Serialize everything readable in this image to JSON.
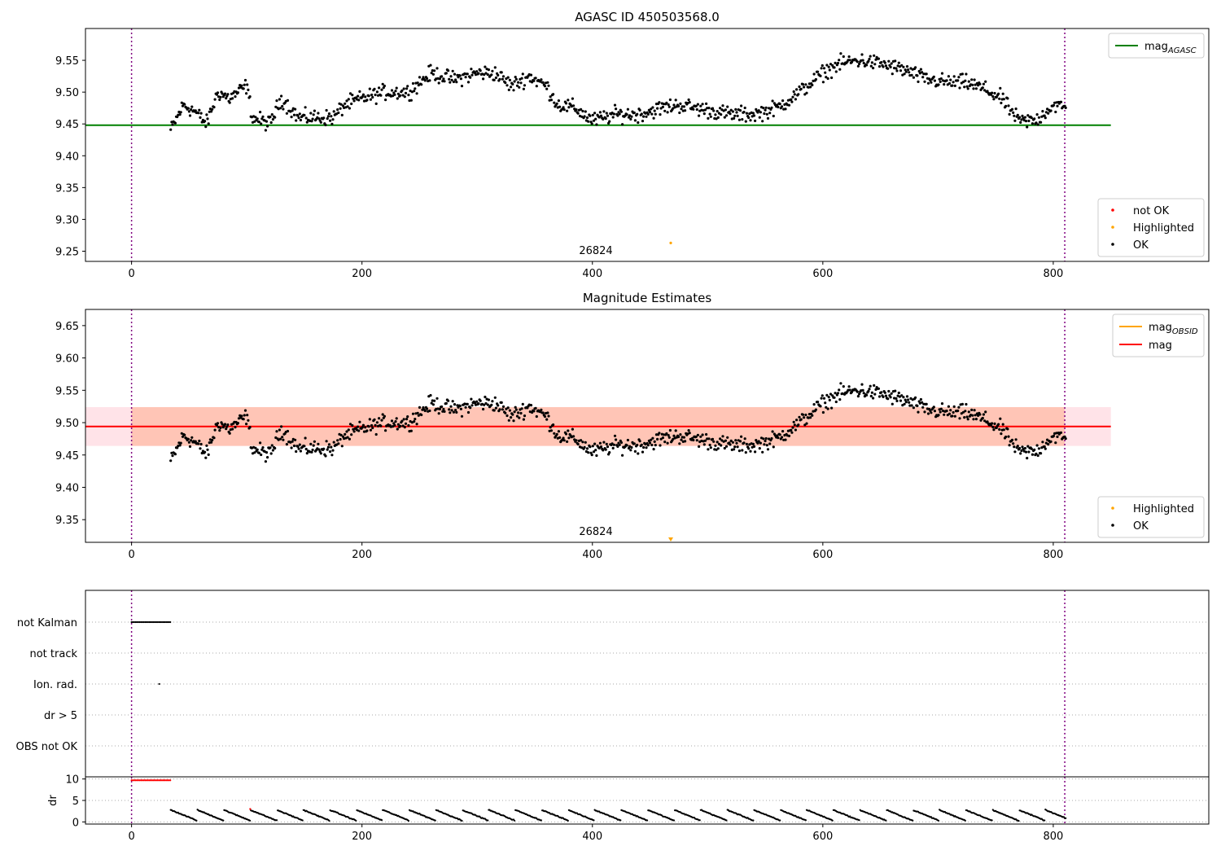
{
  "figure": {
    "titles": [
      "AGASC ID 450503568.0",
      "Magnitude Estimates"
    ],
    "obsid_label": "26824"
  },
  "colors": {
    "ok": "#000000",
    "not_ok": "#ff0000",
    "highlighted": "#ffa500",
    "mag_agasc": "#008000",
    "mag": "#ff0000",
    "mag_obsid": "#ffa500",
    "band_mag": "#ffc0cb",
    "band_obsid": "#ffa07a",
    "boundary_line": "#800080"
  },
  "chart_data": [
    {
      "type": "scatter",
      "title": "AGASC ID 450503568.0",
      "xlim": [
        -40,
        935
      ],
      "ylim": [
        9.234,
        9.6
      ],
      "xticks": [
        0,
        200,
        400,
        600,
        800
      ],
      "yticks": [
        9.25,
        9.3,
        9.35,
        9.4,
        9.45,
        9.5,
        9.55
      ],
      "obs_boundaries": [
        0,
        810
      ],
      "obsid_label": {
        "text": "26824",
        "x": 405
      },
      "reference_lines": [
        {
          "name": "mag_AGASC",
          "label_base": "mag",
          "label_sub": "AGASC",
          "y": 9.448,
          "x_range": [
            -40,
            850
          ],
          "color": "#008000"
        }
      ],
      "series": [
        {
          "name": "not OK",
          "color": "#ff0000",
          "points": []
        },
        {
          "name": "Highlighted",
          "color": "#ffa500",
          "points": [
            [
              468,
              9.263
            ]
          ]
        },
        {
          "name": "OK",
          "color": "#000000",
          "x_range": [
            34,
            811
          ],
          "anchors": [
            [
              34,
              9.44
            ],
            [
              45,
              9.48
            ],
            [
              55,
              9.47
            ],
            [
              65,
              9.45
            ],
            [
              75,
              9.5
            ],
            [
              85,
              9.49
            ],
            [
              100,
              9.51
            ],
            [
              105,
              9.46
            ],
            [
              120,
              9.45
            ],
            [
              130,
              9.49
            ],
            [
              145,
              9.46
            ],
            [
              160,
              9.46
            ],
            [
              175,
              9.46
            ],
            [
              185,
              9.48
            ],
            [
              200,
              9.49
            ],
            [
              220,
              9.5
            ],
            [
              240,
              9.5
            ],
            [
              260,
              9.53
            ],
            [
              280,
              9.52
            ],
            [
              300,
              9.53
            ],
            [
              315,
              9.53
            ],
            [
              330,
              9.51
            ],
            [
              345,
              9.525
            ],
            [
              360,
              9.51
            ],
            [
              370,
              9.48
            ],
            [
              385,
              9.475
            ],
            [
              400,
              9.455
            ],
            [
              420,
              9.465
            ],
            [
              440,
              9.465
            ],
            [
              460,
              9.475
            ],
            [
              475,
              9.48
            ],
            [
              490,
              9.475
            ],
            [
              505,
              9.47
            ],
            [
              520,
              9.465
            ],
            [
              540,
              9.465
            ],
            [
              560,
              9.475
            ],
            [
              580,
              9.5
            ],
            [
              600,
              9.53
            ],
            [
              615,
              9.545
            ],
            [
              630,
              9.55
            ],
            [
              650,
              9.545
            ],
            [
              670,
              9.535
            ],
            [
              690,
              9.52
            ],
            [
              710,
              9.515
            ],
            [
              725,
              9.515
            ],
            [
              740,
              9.505
            ],
            [
              755,
              9.49
            ],
            [
              770,
              9.455
            ],
            [
              785,
              9.455
            ],
            [
              800,
              9.48
            ],
            [
              811,
              9.475
            ]
          ]
        }
      ]
    },
    {
      "type": "scatter",
      "title": "Magnitude Estimates",
      "xlim": [
        -40,
        935
      ],
      "ylim": [
        9.315,
        9.675
      ],
      "xticks": [
        0,
        200,
        400,
        600,
        800
      ],
      "yticks": [
        9.35,
        9.4,
        9.45,
        9.5,
        9.55,
        9.6,
        9.65
      ],
      "obs_boundaries": [
        0,
        810
      ],
      "obsid_label": {
        "text": "26824",
        "x": 405
      },
      "reference_lines": [
        {
          "name": "mag_OBSID",
          "label_base": "mag",
          "label_sub": "OBSID",
          "y": 9.494,
          "x_range": [
            0,
            810
          ],
          "color": "#ffa500"
        },
        {
          "name": "mag",
          "label_base": "mag",
          "label_sub": "",
          "y": 9.494,
          "x_range": [
            -40,
            850
          ],
          "color": "#ff0000"
        }
      ],
      "bands": [
        {
          "name": "mag_band",
          "y_range": [
            9.464,
            9.524
          ],
          "x_range": [
            -40,
            850
          ],
          "color": "#ffc0cb"
        },
        {
          "name": "obsid_band",
          "y_range": [
            9.464,
            9.524
          ],
          "x_range": [
            0,
            810
          ],
          "color": "#ffa07a"
        }
      ],
      "series": [
        {
          "name": "Highlighted",
          "color": "#ffa500",
          "points": [
            [
              468,
              9.318
            ]
          ],
          "clipped_marker": true
        },
        {
          "name": "OK",
          "color": "#000000",
          "same_as_panel": 0
        }
      ]
    },
    {
      "type": "scatter",
      "title": "",
      "xlim": [
        -40,
        935
      ],
      "categories": [
        "not Kalman",
        "not track",
        "Ion. rad.",
        "dr > 5",
        "OBS not OK"
      ],
      "flags": [
        {
          "category": "not Kalman",
          "x_range": [
            0,
            34
          ],
          "color": "#000000"
        },
        {
          "category": "Ion. rad.",
          "x_points": [
            24
          ],
          "color": "#000000"
        }
      ]
    },
    {
      "type": "scatter",
      "title": "",
      "ylabel": "dr",
      "xlim": [
        -40,
        935
      ],
      "ylim": [
        -0.5,
        10.5
      ],
      "xticks": [
        0,
        200,
        400,
        600,
        800
      ],
      "yticks": [
        0,
        5,
        10
      ],
      "series": [
        {
          "name": "dr",
          "color": "#000000",
          "x_range": [
            34,
            811
          ],
          "value_range": [
            0.3,
            2.8
          ]
        },
        {
          "name": "dr not OK",
          "color": "#ff0000",
          "x_range": [
            0,
            34
          ],
          "value": 9.7
        },
        {
          "name": "dr outlier",
          "color": "#ff0000",
          "points": [
            [
              103,
              3.0
            ]
          ]
        }
      ]
    }
  ]
}
